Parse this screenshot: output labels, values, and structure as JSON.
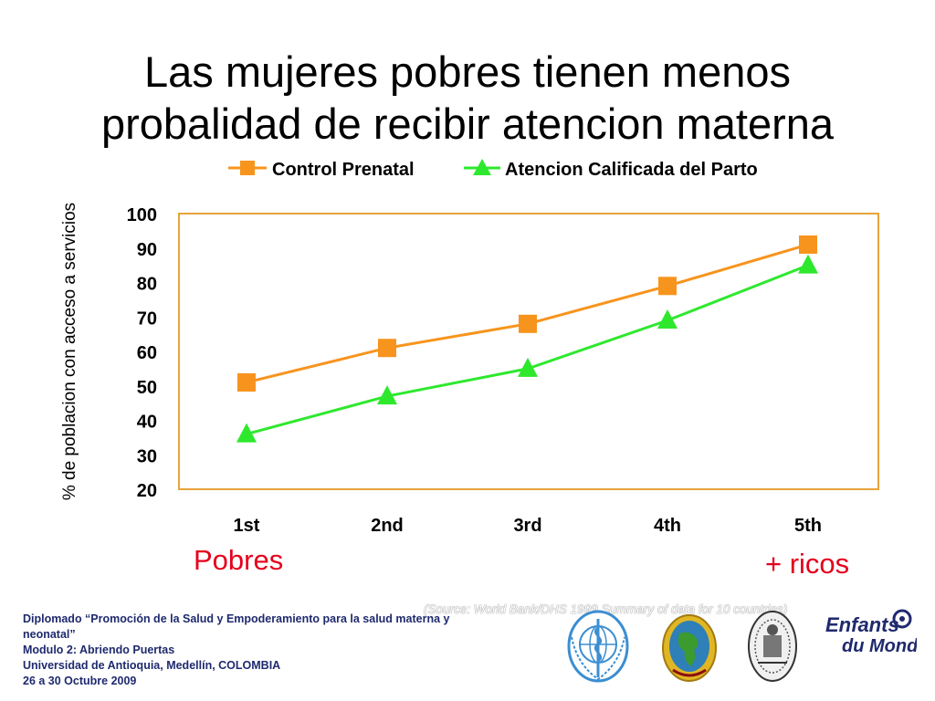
{
  "slide": {
    "title_line1": "Las  mujeres pobres tienen menos",
    "title_line2": "probalidad de recibir atencion materna",
    "label_left": "Pobres",
    "label_right": "+ ricos",
    "source_note": "(Source: World Bank/DHS 1999 Summary of data for 10 countries)",
    "footer": [
      "Diplomado “Promoción de la Salud y Empoderamiento para la salud materna y",
      "neonatal”",
      "Modulo 2: Abriendo Puertas",
      "Universidad de Antioquia, Medellín, COLOMBIA",
      "26 a 30 Octubre 2009"
    ],
    "logos": [
      {
        "name": "who-emblem-logo"
      },
      {
        "name": "globe-seal-logo"
      },
      {
        "name": "university-seal-logo"
      },
      {
        "name": "enfants-du-monde-logo",
        "text": "Enfants du Monde"
      }
    ],
    "colors": {
      "series_control": "#f7941d",
      "series_atencion": "#2ee82e",
      "plot_border": "#e8a33a",
      "accent_red": "#e5001c",
      "footer_text": "#1f2a6e"
    }
  },
  "chart_data": {
    "type": "line",
    "categories": [
      "1st",
      "2nd",
      "3rd",
      "4th",
      "5th"
    ],
    "series": [
      {
        "name": "Control Prenatal",
        "marker": "square",
        "values": [
          51,
          61,
          68,
          79,
          91
        ]
      },
      {
        "name": "Atencion Calificada del Parto",
        "marker": "triangle",
        "values": [
          36,
          47,
          55,
          69,
          85
        ]
      }
    ],
    "ylabel": "% de poblacion con acceso a servicios",
    "ylim": [
      20,
      100
    ],
    "yticks": [
      "100",
      "90",
      "80",
      "70",
      "60",
      "50",
      "40",
      "30",
      "20"
    ],
    "legend": "top",
    "grid": false
  }
}
